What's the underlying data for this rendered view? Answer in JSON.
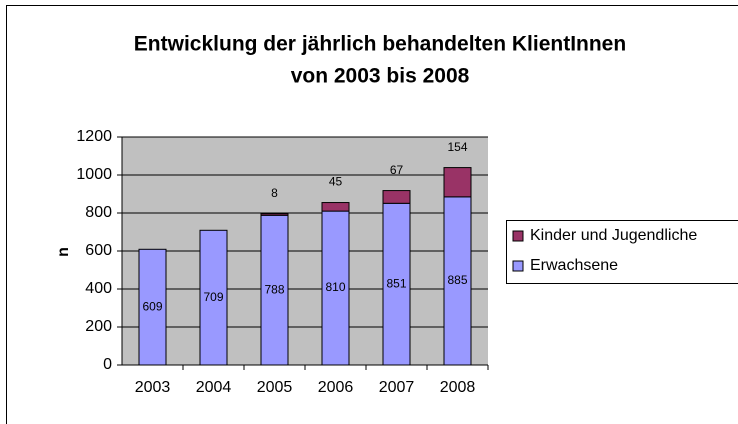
{
  "chart_data": {
    "type": "stacked_bar",
    "title": [
      "Entwicklung der jährlich behandelten KlientInnen",
      "von 2003 bis 2008"
    ],
    "y_label": "n",
    "categories": [
      "2003",
      "2004",
      "2005",
      "2006",
      "2007",
      "2008"
    ],
    "series": [
      {
        "name": "Erwachsene",
        "color": "#9999ff",
        "values": [
          609,
          709,
          788,
          810,
          851,
          885
        ]
      },
      {
        "name": "Kinder und Jugendliche",
        "color": "#993366",
        "values": [
          null,
          null,
          8,
          45,
          67,
          154
        ]
      }
    ],
    "ylim": [
      0,
      1200
    ],
    "yticks": [
      0,
      200,
      400,
      600,
      800,
      1000,
      1200
    ],
    "grid": true,
    "legend": "right"
  }
}
